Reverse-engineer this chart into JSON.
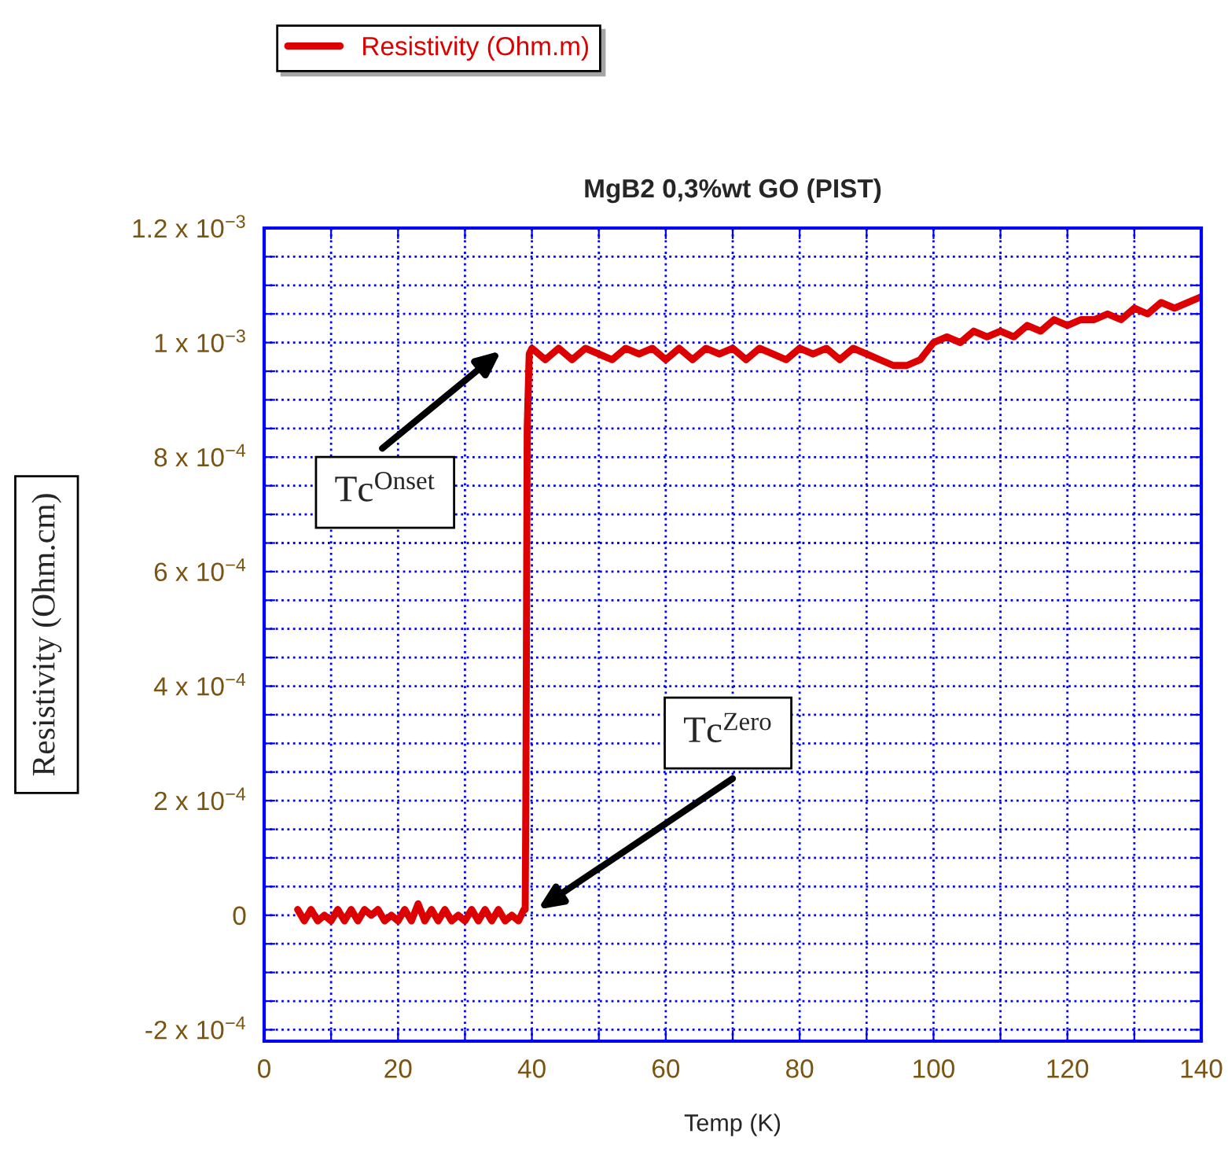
{
  "chart_data": {
    "type": "line",
    "title": "MgB2 0,3%wt GO (PIST)",
    "xlabel": "Temp (K)",
    "ylabel": "Resistivity (Ohm.cm)",
    "xlim": [
      0,
      140
    ],
    "ylim": [
      -0.00022,
      0.0012
    ],
    "xticks": [
      0,
      {
        "value": 10,
        "label": null
      },
      20,
      {
        "value": 30,
        "label": null
      },
      40,
      {
        "value": 50,
        "label": null
      },
      60,
      {
        "value": 70,
        "label": null
      },
      80,
      {
        "value": 90,
        "label": null
      },
      100,
      {
        "value": 110,
        "label": null
      },
      120,
      {
        "value": 130,
        "label": null
      },
      140
    ],
    "yticks": [
      {
        "value": -0.0002,
        "label": "-2 x 10$^{−4}$"
      },
      {
        "value": -0.00015,
        "label": null
      },
      {
        "value": -0.0001,
        "label": null
      },
      {
        "value": -5e-05,
        "label": null
      },
      {
        "value": 0,
        "label": "0"
      },
      {
        "value": 5e-05,
        "label": null
      },
      {
        "value": 0.0001,
        "label": null
      },
      {
        "value": 0.00015,
        "label": null
      },
      {
        "value": 0.0002,
        "label": "2 x 10$^{−4}$"
      },
      {
        "value": 0.00025,
        "label": null
      },
      {
        "value": 0.0003,
        "label": null
      },
      {
        "value": 0.00035,
        "label": null
      },
      {
        "value": 0.0004,
        "label": "4 x 10$^{−4}$"
      },
      {
        "value": 0.00045,
        "label": null
      },
      {
        "value": 0.0005,
        "label": null
      },
      {
        "value": 0.00055,
        "label": null
      },
      {
        "value": 0.0006,
        "label": "6 x 10$^{−4}$"
      },
      {
        "value": 0.00065,
        "label": null
      },
      {
        "value": 0.0007,
        "label": null
      },
      {
        "value": 0.00075,
        "label": null
      },
      {
        "value": 0.0008,
        "label": "8 x 10$^{−4}$"
      },
      {
        "value": 0.00085,
        "label": null
      },
      {
        "value": 0.0009,
        "label": null
      },
      {
        "value": 0.00095,
        "label": null
      },
      {
        "value": 0.001,
        "label": "1 x 10$^{−3}$"
      },
      {
        "value": 0.00105,
        "label": null
      },
      {
        "value": 0.0011,
        "label": null
      },
      {
        "value": 0.00115,
        "label": null
      },
      {
        "value": 0.0012,
        "label": "1.2 x 10$^{−3}$"
      }
    ],
    "grid": true,
    "legend": "top left",
    "marker": "none",
    "line_style": "solid",
    "annotations": [
      "Tc$^{Onset}$",
      "Tc$^{Zero}$"
    ],
    "series": [
      {
        "name": "Resistivity (Ohm.m)",
        "color": "#dd0000",
        "x": [
          5,
          6,
          7,
          8,
          9,
          10,
          11,
          12,
          13,
          14,
          15,
          16,
          17,
          18,
          19,
          20,
          21,
          22,
          23,
          24,
          25,
          26,
          27,
          28,
          29,
          30,
          31,
          32,
          33,
          34,
          35,
          36,
          37,
          38,
          38.8,
          39.0,
          39.1,
          39.3,
          39.6,
          40,
          42,
          44,
          46,
          48,
          50,
          52,
          54,
          56,
          58,
          60,
          62,
          64,
          66,
          68,
          70,
          72,
          74,
          76,
          78,
          80,
          82,
          84,
          86,
          88,
          90,
          92,
          94,
          96,
          98,
          100,
          102,
          104,
          106,
          108,
          110,
          112,
          114,
          116,
          118,
          120,
          122,
          124,
          126,
          128,
          130,
          132,
          134,
          136,
          138,
          140
        ],
        "values": [
          1e-05,
          -1e-05,
          1e-05,
          -1e-05,
          0,
          -1e-05,
          1e-05,
          -1e-05,
          1e-05,
          -1e-05,
          1e-05,
          0,
          1e-05,
          -1e-05,
          0,
          -1e-05,
          1e-05,
          -1e-05,
          2e-05,
          -1e-05,
          1e-05,
          -1e-05,
          1e-05,
          -1e-05,
          0,
          -1e-05,
          1e-05,
          -1e-05,
          1e-05,
          -1e-05,
          1e-05,
          -1e-05,
          0,
          -1e-05,
          1e-05,
          1e-05,
          0.00021,
          0.00085,
          0.00098,
          0.00099,
          0.00097,
          0.00099,
          0.00097,
          0.00099,
          0.00098,
          0.00097,
          0.00099,
          0.00098,
          0.00099,
          0.00097,
          0.00099,
          0.00097,
          0.00099,
          0.00098,
          0.00099,
          0.00097,
          0.00099,
          0.00098,
          0.00097,
          0.00099,
          0.00098,
          0.00099,
          0.00097,
          0.00099,
          0.00098,
          0.00097,
          0.00096,
          0.00096,
          0.00097,
          0.001,
          0.00101,
          0.001,
          0.00102,
          0.00101,
          0.00102,
          0.00101,
          0.00103,
          0.00102,
          0.00104,
          0.00103,
          0.00104,
          0.00104,
          0.00105,
          0.00104,
          0.00106,
          0.00105,
          0.00107,
          0.00106,
          0.00107,
          0.00108
        ]
      }
    ]
  }
}
